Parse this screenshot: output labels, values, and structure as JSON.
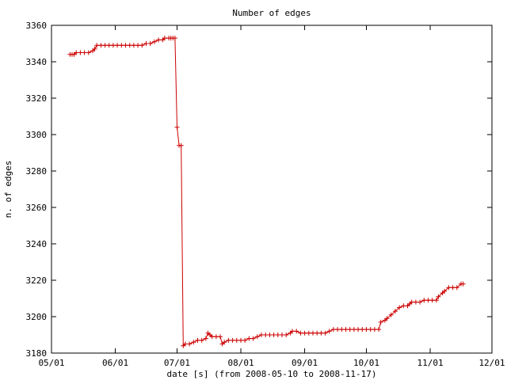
{
  "chart_data": {
    "type": "line",
    "title": "Number of edges",
    "xlabel": "date [s] (from 2008-05-10 to 2008-11-17)",
    "ylabel": "n. of edges",
    "x_tick_labels": [
      "05/01",
      "06/01",
      "07/01",
      "08/01",
      "09/01",
      "10/01",
      "11/01",
      "12/01"
    ],
    "x_tick_dates": [
      "2008-05-01",
      "2008-06-01",
      "2008-07-01",
      "2008-08-01",
      "2008-09-01",
      "2008-10-01",
      "2008-11-01",
      "2008-12-01"
    ],
    "xlim": [
      "2008-05-01",
      "2008-12-01"
    ],
    "y_ticks": [
      3180,
      3200,
      3220,
      3240,
      3260,
      3280,
      3300,
      3320,
      3340,
      3360
    ],
    "ylim": [
      3180,
      3360
    ],
    "grid": false,
    "line_color": "#cc0000",
    "marker": "+",
    "series": [
      {
        "points": [
          [
            "2008-05-10",
            3344
          ],
          [
            "2008-05-11",
            3344
          ],
          [
            "2008-05-12",
            3344
          ],
          [
            "2008-05-13",
            3345
          ],
          [
            "2008-05-15",
            3345
          ],
          [
            "2008-05-17",
            3345
          ],
          [
            "2008-05-19",
            3345
          ],
          [
            "2008-05-21",
            3346
          ],
          [
            "2008-05-22",
            3347
          ],
          [
            "2008-05-23",
            3349
          ],
          [
            "2008-05-25",
            3349
          ],
          [
            "2008-05-27",
            3349
          ],
          [
            "2008-05-29",
            3349
          ],
          [
            "2008-05-31",
            3349
          ],
          [
            "2008-06-02",
            3349
          ],
          [
            "2008-06-04",
            3349
          ],
          [
            "2008-06-06",
            3349
          ],
          [
            "2008-06-08",
            3349
          ],
          [
            "2008-06-10",
            3349
          ],
          [
            "2008-06-12",
            3349
          ],
          [
            "2008-06-14",
            3349
          ],
          [
            "2008-06-16",
            3350
          ],
          [
            "2008-06-18",
            3350
          ],
          [
            "2008-06-20",
            3351
          ],
          [
            "2008-06-22",
            3352
          ],
          [
            "2008-06-24",
            3352
          ],
          [
            "2008-06-25",
            3353
          ],
          [
            "2008-06-27",
            3353
          ],
          [
            "2008-06-28",
            3353
          ],
          [
            "2008-06-29",
            3353
          ],
          [
            "2008-06-30",
            3353
          ],
          [
            "2008-07-01",
            3304
          ],
          [
            "2008-07-02",
            3294
          ],
          [
            "2008-07-03",
            3294
          ],
          [
            "2008-07-04",
            3184
          ],
          [
            "2008-07-05",
            3185
          ],
          [
            "2008-07-07",
            3185
          ],
          [
            "2008-07-09",
            3186
          ],
          [
            "2008-07-11",
            3187
          ],
          [
            "2008-07-13",
            3187
          ],
          [
            "2008-07-15",
            3188
          ],
          [
            "2008-07-16",
            3191
          ],
          [
            "2008-07-17",
            3190
          ],
          [
            "2008-07-18",
            3189
          ],
          [
            "2008-07-20",
            3189
          ],
          [
            "2008-07-22",
            3189
          ],
          [
            "2008-07-23",
            3185
          ],
          [
            "2008-07-24",
            3186
          ],
          [
            "2008-07-26",
            3187
          ],
          [
            "2008-07-28",
            3187
          ],
          [
            "2008-07-30",
            3187
          ],
          [
            "2008-08-01",
            3187
          ],
          [
            "2008-08-03",
            3187
          ],
          [
            "2008-08-05",
            3188
          ],
          [
            "2008-08-07",
            3188
          ],
          [
            "2008-08-09",
            3189
          ],
          [
            "2008-08-11",
            3190
          ],
          [
            "2008-08-13",
            3190
          ],
          [
            "2008-08-15",
            3190
          ],
          [
            "2008-08-17",
            3190
          ],
          [
            "2008-08-19",
            3190
          ],
          [
            "2008-08-21",
            3190
          ],
          [
            "2008-08-23",
            3190
          ],
          [
            "2008-08-25",
            3191
          ],
          [
            "2008-08-26",
            3192
          ],
          [
            "2008-08-28",
            3192
          ],
          [
            "2008-08-30",
            3191
          ],
          [
            "2008-09-01",
            3191
          ],
          [
            "2008-09-03",
            3191
          ],
          [
            "2008-09-05",
            3191
          ],
          [
            "2008-09-07",
            3191
          ],
          [
            "2008-09-09",
            3191
          ],
          [
            "2008-09-11",
            3191
          ],
          [
            "2008-09-13",
            3192
          ],
          [
            "2008-09-15",
            3193
          ],
          [
            "2008-09-17",
            3193
          ],
          [
            "2008-09-19",
            3193
          ],
          [
            "2008-09-21",
            3193
          ],
          [
            "2008-09-23",
            3193
          ],
          [
            "2008-09-25",
            3193
          ],
          [
            "2008-09-27",
            3193
          ],
          [
            "2008-09-29",
            3193
          ],
          [
            "2008-10-01",
            3193
          ],
          [
            "2008-10-03",
            3193
          ],
          [
            "2008-10-05",
            3193
          ],
          [
            "2008-10-07",
            3193
          ],
          [
            "2008-10-08",
            3197
          ],
          [
            "2008-10-10",
            3198
          ],
          [
            "2008-10-11",
            3199
          ],
          [
            "2008-10-13",
            3201
          ],
          [
            "2008-10-15",
            3203
          ],
          [
            "2008-10-17",
            3205
          ],
          [
            "2008-10-19",
            3206
          ],
          [
            "2008-10-21",
            3206
          ],
          [
            "2008-10-22",
            3207
          ],
          [
            "2008-10-23",
            3208
          ],
          [
            "2008-10-25",
            3208
          ],
          [
            "2008-10-27",
            3208
          ],
          [
            "2008-10-29",
            3209
          ],
          [
            "2008-10-31",
            3209
          ],
          [
            "2008-11-02",
            3209
          ],
          [
            "2008-11-04",
            3209
          ],
          [
            "2008-11-05",
            3211
          ],
          [
            "2008-11-07",
            3213
          ],
          [
            "2008-11-08",
            3214
          ],
          [
            "2008-11-10",
            3216
          ],
          [
            "2008-11-12",
            3216
          ],
          [
            "2008-11-14",
            3216
          ],
          [
            "2008-11-16",
            3218
          ],
          [
            "2008-11-17",
            3218
          ]
        ]
      }
    ]
  }
}
